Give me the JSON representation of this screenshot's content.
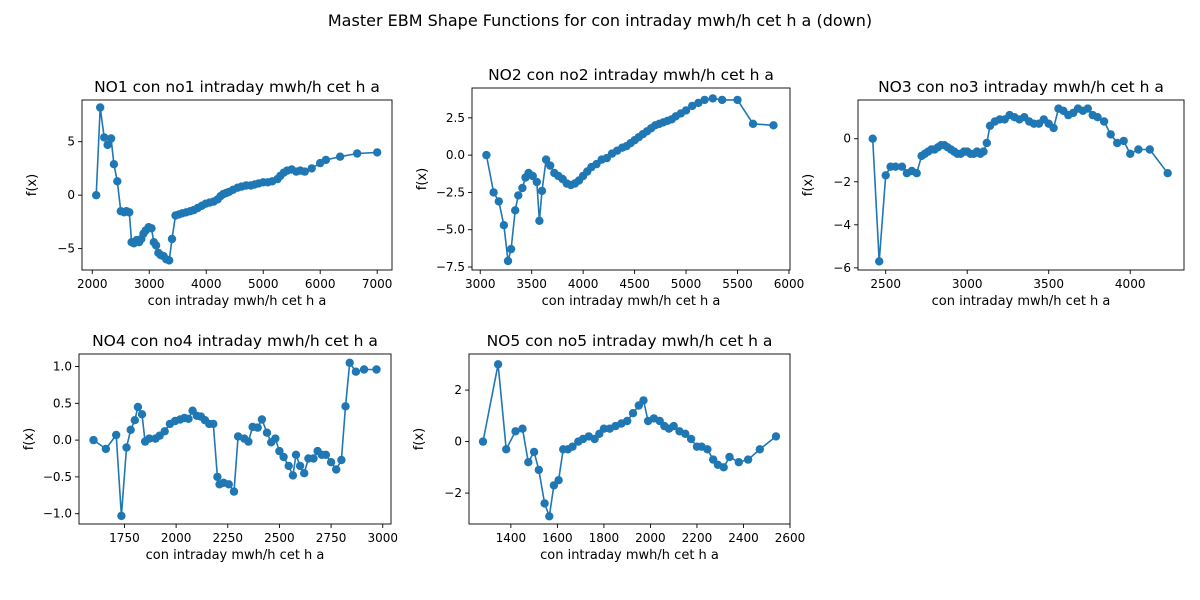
{
  "figure": {
    "suptitle": "Master EBM Shape Functions for con  intraday mwh/h cet h a (down)"
  },
  "chart_data": [
    {
      "type": "line",
      "title": "NO1 con no1 intraday mwh/h cet h a",
      "xlabel": "con  intraday mwh/h cet h a",
      "ylabel": "f(x)",
      "xlim": [
        1820,
        7260
      ],
      "ylim": [
        -7.0,
        8.9
      ],
      "xticks": [
        2000,
        3000,
        4000,
        5000,
        6000,
        7000
      ],
      "yticks": [
        -5,
        0,
        5
      ],
      "color": "#1f77b4",
      "x": [
        2070,
        2140,
        2210,
        2270,
        2330,
        2380,
        2440,
        2500,
        2560,
        2600,
        2650,
        2690,
        2730,
        2780,
        2820,
        2860,
        2900,
        2940,
        2990,
        3040,
        3080,
        3120,
        3160,
        3200,
        3250,
        3300,
        3350,
        3400,
        3460,
        3520,
        3580,
        3650,
        3720,
        3780,
        3850,
        3920,
        3990,
        4060,
        4130,
        4200,
        4250,
        4300,
        4350,
        4400,
        4470,
        4550,
        4620,
        4700,
        4780,
        4850,
        4920,
        5000,
        5080,
        5160,
        5250,
        5300,
        5360,
        5420,
        5500,
        5580,
        5650,
        5730,
        5850,
        6000,
        6100,
        6350,
        6650,
        7000
      ],
      "y": [
        0.0,
        8.2,
        5.4,
        4.7,
        5.3,
        2.9,
        1.3,
        -1.5,
        -1.6,
        -1.5,
        -1.6,
        -4.4,
        -4.5,
        -4.2,
        -4.4,
        -4.1,
        -3.6,
        -3.3,
        -3.0,
        -3.1,
        -4.4,
        -4.7,
        -5.4,
        -5.6,
        -5.7,
        -6.0,
        -6.1,
        -4.1,
        -1.9,
        -1.8,
        -1.7,
        -1.6,
        -1.5,
        -1.4,
        -1.2,
        -1.0,
        -0.8,
        -0.7,
        -0.6,
        -0.4,
        -0.1,
        0.1,
        0.2,
        0.3,
        0.5,
        0.7,
        0.8,
        0.9,
        0.9,
        1.0,
        1.1,
        1.2,
        1.2,
        1.3,
        1.5,
        1.8,
        2.1,
        2.3,
        2.4,
        2.2,
        2.3,
        2.2,
        2.5,
        3.0,
        3.3,
        3.6,
        3.9,
        4.0
      ]
    },
    {
      "type": "line",
      "title": "NO2 con no2 intraday mwh/h cet h a",
      "xlabel": "con  intraday mwh/h cet h a",
      "ylabel": "f(x)",
      "xlim": [
        2920,
        6010
      ],
      "ylim": [
        -7.7,
        4.5
      ],
      "xticks": [
        3000,
        3500,
        4000,
        4500,
        5000,
        5500,
        6000
      ],
      "yticks": [
        -7.5,
        -5.0,
        -2.5,
        0.0,
        2.5
      ],
      "color": "#1f77b4",
      "x": [
        3060,
        3130,
        3180,
        3230,
        3270,
        3300,
        3340,
        3370,
        3410,
        3440,
        3470,
        3510,
        3550,
        3575,
        3600,
        3640,
        3680,
        3720,
        3760,
        3800,
        3840,
        3880,
        3920,
        3960,
        4000,
        4040,
        4080,
        4130,
        4180,
        4230,
        4280,
        4330,
        4380,
        4420,
        4460,
        4500,
        4540,
        4580,
        4620,
        4660,
        4700,
        4740,
        4780,
        4820,
        4860,
        4900,
        4950,
        5000,
        5060,
        5120,
        5180,
        5260,
        5350,
        5500,
        5650,
        5850
      ],
      "y": [
        0.0,
        -2.5,
        -3.1,
        -4.7,
        -7.1,
        -6.3,
        -3.7,
        -2.7,
        -2.2,
        -1.5,
        -1.2,
        -1.4,
        -1.8,
        -4.4,
        -2.4,
        -0.3,
        -0.7,
        -1.2,
        -1.4,
        -1.6,
        -1.9,
        -2.0,
        -1.9,
        -1.7,
        -1.4,
        -1.1,
        -0.8,
        -0.6,
        -0.3,
        -0.2,
        0.1,
        0.3,
        0.5,
        0.6,
        0.8,
        1.0,
        1.2,
        1.4,
        1.6,
        1.8,
        2.0,
        2.1,
        2.2,
        2.3,
        2.4,
        2.6,
        2.8,
        3.0,
        3.3,
        3.5,
        3.7,
        3.8,
        3.7,
        3.7,
        2.1,
        2.0
      ]
    },
    {
      "type": "line",
      "title": "NO3 con no3 intraday mwh/h cet h a",
      "xlabel": "con  intraday mwh/h cet h a",
      "ylabel": "f(x)",
      "xlim": [
        2330,
        4330
      ],
      "ylim": [
        -6.1,
        1.8
      ],
      "xticks": [
        2500,
        3000,
        3500,
        4000
      ],
      "yticks": [
        -6,
        -4,
        -2,
        0
      ],
      "color": "#1f77b4",
      "x": [
        2420,
        2460,
        2500,
        2530,
        2560,
        2600,
        2630,
        2660,
        2690,
        2720,
        2740,
        2760,
        2780,
        2800,
        2820,
        2840,
        2860,
        2880,
        2900,
        2920,
        2940,
        2960,
        2980,
        3000,
        3020,
        3040,
        3060,
        3080,
        3100,
        3120,
        3140,
        3170,
        3200,
        3230,
        3260,
        3290,
        3320,
        3350,
        3380,
        3410,
        3440,
        3470,
        3500,
        3530,
        3560,
        3590,
        3620,
        3650,
        3680,
        3710,
        3740,
        3770,
        3800,
        3840,
        3880,
        3920,
        3960,
        4000,
        4050,
        4120,
        4230
      ],
      "y": [
        0.0,
        -5.7,
        -1.7,
        -1.3,
        -1.3,
        -1.3,
        -1.6,
        -1.5,
        -1.6,
        -0.8,
        -0.7,
        -0.6,
        -0.5,
        -0.5,
        -0.4,
        -0.3,
        -0.3,
        -0.4,
        -0.5,
        -0.6,
        -0.7,
        -0.7,
        -0.6,
        -0.6,
        -0.7,
        -0.7,
        -0.6,
        -0.7,
        -0.6,
        -0.2,
        0.6,
        0.8,
        0.9,
        0.9,
        1.1,
        1.0,
        0.9,
        1.0,
        0.8,
        0.7,
        0.7,
        0.9,
        0.7,
        0.5,
        1.4,
        1.3,
        1.1,
        1.2,
        1.4,
        1.3,
        1.4,
        1.1,
        1.0,
        0.8,
        0.2,
        -0.2,
        -0.1,
        -0.7,
        -0.5,
        -0.5,
        -1.6
      ]
    },
    {
      "type": "line",
      "title": "NO4 con no4 intraday mwh/h cet h a",
      "xlabel": "con  intraday mwh/h cet h a",
      "ylabel": "f(x)",
      "xlim": [
        1530,
        3040
      ],
      "ylim": [
        -1.14,
        1.17
      ],
      "xticks": [
        1750,
        2000,
        2250,
        2500,
        2750,
        3000
      ],
      "yticks": [
        -1.0,
        -0.5,
        0.0,
        0.5,
        1.0
      ],
      "color": "#1f77b4",
      "x": [
        1600,
        1660,
        1710,
        1735,
        1760,
        1780,
        1800,
        1815,
        1835,
        1850,
        1870,
        1900,
        1920,
        1945,
        1970,
        1995,
        2020,
        2040,
        2060,
        2080,
        2100,
        2120,
        2140,
        2160,
        2180,
        2200,
        2210,
        2230,
        2255,
        2280,
        2300,
        2330,
        2350,
        2370,
        2395,
        2415,
        2440,
        2460,
        2480,
        2500,
        2520,
        2545,
        2565,
        2580,
        2600,
        2620,
        2640,
        2665,
        2685,
        2705,
        2725,
        2750,
        2775,
        2800,
        2820,
        2840,
        2870,
        2910,
        2970
      ],
      "y": [
        0.0,
        -0.12,
        0.07,
        -1.03,
        -0.1,
        0.14,
        0.27,
        0.45,
        0.35,
        -0.02,
        0.02,
        0.02,
        0.06,
        0.12,
        0.22,
        0.26,
        0.28,
        0.3,
        0.29,
        0.4,
        0.33,
        0.32,
        0.27,
        0.22,
        0.22,
        -0.5,
        -0.6,
        -0.58,
        -0.6,
        -0.7,
        0.05,
        0.02,
        -0.02,
        0.18,
        0.17,
        0.28,
        0.1,
        -0.03,
        0.02,
        -0.15,
        -0.23,
        -0.35,
        -0.48,
        -0.2,
        -0.35,
        -0.45,
        -0.25,
        -0.25,
        -0.15,
        -0.2,
        -0.2,
        -0.3,
        -0.4,
        -0.27,
        0.46,
        1.05,
        0.93,
        0.96,
        0.96
      ]
    },
    {
      "type": "line",
      "title": "NO5 con no5 intraday mwh/h cet h a",
      "xlabel": "con  intraday mwh/h cet h a",
      "ylabel": "f(x)",
      "xlim": [
        1220,
        2600
      ],
      "ylim": [
        -3.2,
        3.4
      ],
      "xticks": [
        1400,
        1600,
        1800,
        2000,
        2200,
        2400,
        2600
      ],
      "yticks": [
        -2,
        0,
        2
      ],
      "color": "#1f77b4",
      "x": [
        1280,
        1345,
        1380,
        1420,
        1450,
        1475,
        1500,
        1520,
        1545,
        1565,
        1585,
        1605,
        1625,
        1645,
        1665,
        1690,
        1710,
        1735,
        1760,
        1780,
        1800,
        1825,
        1850,
        1875,
        1900,
        1925,
        1950,
        1970,
        1990,
        2015,
        2040,
        2060,
        2080,
        2100,
        2125,
        2150,
        2175,
        2200,
        2220,
        2245,
        2270,
        2290,
        2315,
        2340,
        2380,
        2420,
        2470,
        2540
      ],
      "y": [
        0.0,
        3.0,
        -0.3,
        0.4,
        0.5,
        -0.8,
        -0.4,
        -1.1,
        -2.4,
        -2.9,
        -1.7,
        -1.5,
        -0.3,
        -0.3,
        -0.2,
        0.0,
        0.1,
        0.2,
        0.1,
        0.3,
        0.5,
        0.5,
        0.6,
        0.7,
        0.8,
        1.1,
        1.4,
        1.6,
        0.8,
        0.9,
        0.8,
        0.6,
        0.5,
        0.6,
        0.4,
        0.3,
        0.1,
        -0.2,
        -0.2,
        -0.3,
        -0.7,
        -0.9,
        -1.0,
        -0.6,
        -0.8,
        -0.7,
        -0.3,
        0.2
      ]
    }
  ]
}
